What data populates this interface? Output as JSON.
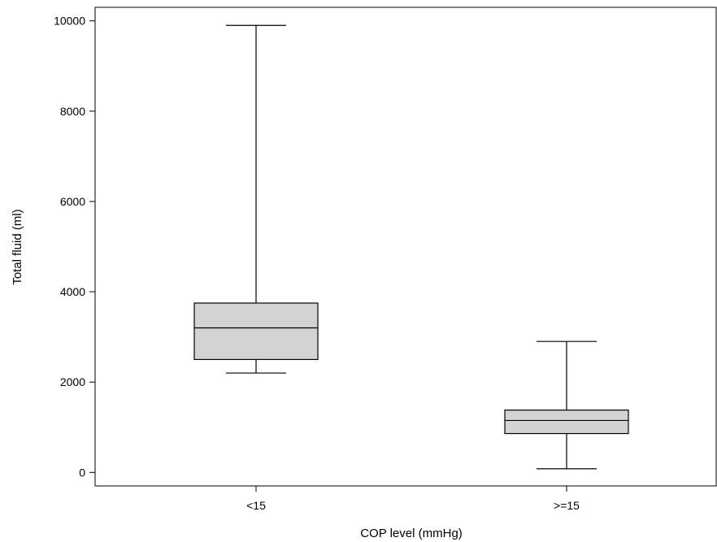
{
  "chart_data": {
    "type": "box",
    "title": "",
    "xlabel": "COP level (mmHg)",
    "ylabel": "Total fluid (ml)",
    "ylim": [
      -300,
      10300
    ],
    "yticks": [
      0,
      2000,
      4000,
      6000,
      8000,
      10000
    ],
    "grid": false,
    "categories": [
      "<15",
      ">=15"
    ],
    "boxes": [
      {
        "category": "<15",
        "min": 2200,
        "q1": 2500,
        "median": 3200,
        "q3": 3750,
        "max": 9900
      },
      {
        "category": ">=15",
        "min": 80,
        "q1": 860,
        "median": 1150,
        "q3": 1380,
        "max": 2900
      }
    ],
    "colors": {
      "box_fill": "#d3d3d3",
      "stroke": "#000000"
    }
  }
}
